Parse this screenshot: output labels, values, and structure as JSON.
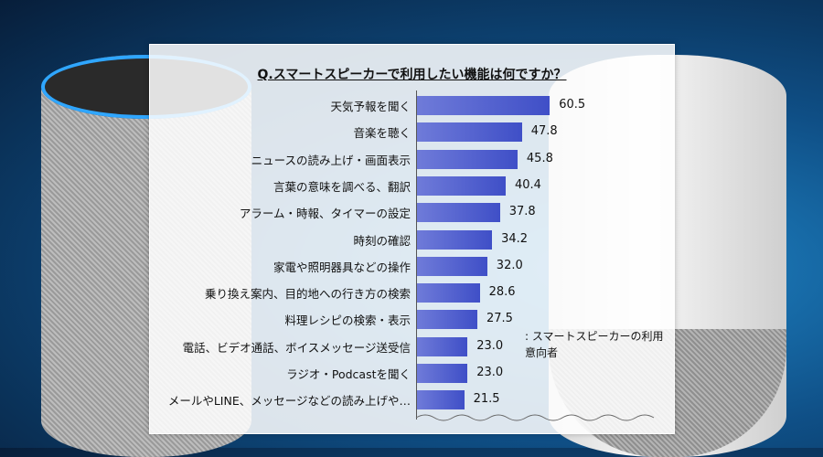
{
  "chart_data": {
    "type": "bar",
    "orientation": "horizontal",
    "title": "Q.スマートスピーカーで利用したい機能は何ですか？",
    "categories": [
      "天気予報を聞く",
      "音楽を聴く",
      "ニュースの読み上げ・画面表示",
      "言葉の意味を調べる、翻訳",
      "アラーム・時報、タイマーの設定",
      "時刻の確認",
      "家電や照明器具などの操作",
      "乗り換え案内、目的地への行き方の検索",
      "料理レシピの検索・表示",
      "電話、ビデオ通話、ボイスメッセージ送受信",
      "ラジオ・Podcastを聞く",
      "メールやLINE、メッセージなどの読み上げや…"
    ],
    "values": [
      60.5,
      47.8,
      45.8,
      40.4,
      37.8,
      34.2,
      32.0,
      28.6,
      27.5,
      23.0,
      23.0,
      21.5
    ],
    "value_labels": [
      "60.5",
      "47.8",
      "45.8",
      "40.4",
      "37.8",
      "34.2",
      "32.0",
      "28.6",
      "27.5",
      "23.0",
      "23.0",
      "21.5"
    ],
    "xlim": [
      0,
      100
    ],
    "grid": false,
    "note": ": スマートスピーカーの利用意向者"
  }
}
